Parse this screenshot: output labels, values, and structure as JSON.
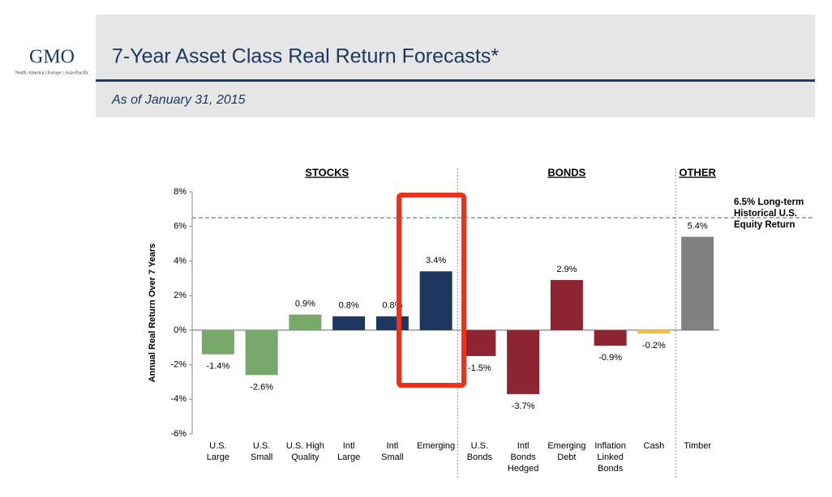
{
  "header": {
    "logo": "GMO",
    "logo_tagline": "North America | Europe | Asia-Pacific",
    "title": "7-Year Asset Class Real Return Forecasts*",
    "subtitle": "As of January 31, 2015"
  },
  "chart_data": {
    "type": "bar",
    "y_label": "Annual Real Return Over 7 Years",
    "categories": [
      "U.S.\nLarge",
      "U.S.\nSmall",
      "U.S. High\nQuality",
      "Intl\nLarge",
      "Intl\nSmall",
      "Emerging",
      "U.S.\nBonds",
      "Intl\nBonds\nHedged",
      "Emerging\nDebt",
      "Inflation\nLinked\nBonds",
      "Cash",
      "Timber"
    ],
    "values": [
      -1.4,
      -2.6,
      0.9,
      0.8,
      0.8,
      3.4,
      -1.5,
      -3.7,
      2.9,
      -0.9,
      -0.2,
      5.4
    ],
    "value_labels": [
      "-1.4%",
      "-2.6%",
      "0.9%",
      "0.8%",
      "0.8%",
      "3.4%",
      "-1.5%",
      "-3.7%",
      "2.9%",
      "-0.9%",
      "-0.2%",
      "5.4%"
    ],
    "colors": [
      "#78a86b",
      "#78a86b",
      "#78a86b",
      "#1d3761",
      "#1d3761",
      "#1d3761",
      "#8c2431",
      "#8c2431",
      "#8c2431",
      "#8c2431",
      "#f3c03f",
      "#828282"
    ],
    "groups": [
      {
        "name": "STOCKS",
        "start": 0,
        "end": 5
      },
      {
        "name": "BONDS",
        "start": 6,
        "end": 10
      },
      {
        "name": "OTHER",
        "start": 11,
        "end": 11
      }
    ],
    "reference_line": {
      "value": 6.5,
      "label": "6.5% Long-term\nHistorical U.S.\nEquity Return",
      "color": "#5f8a8b"
    },
    "ylim": [
      -6,
      8
    ],
    "yticks": [
      {
        "value": -6,
        "label": "-6%"
      },
      {
        "value": -4,
        "label": "-4%"
      },
      {
        "value": -2,
        "label": "-2%"
      },
      {
        "value": 0,
        "label": "0%"
      },
      {
        "value": 2,
        "label": "2%"
      },
      {
        "value": 4,
        "label": "4%"
      },
      {
        "value": 6,
        "label": "6%"
      },
      {
        "value": 8,
        "label": "8%"
      }
    ]
  }
}
